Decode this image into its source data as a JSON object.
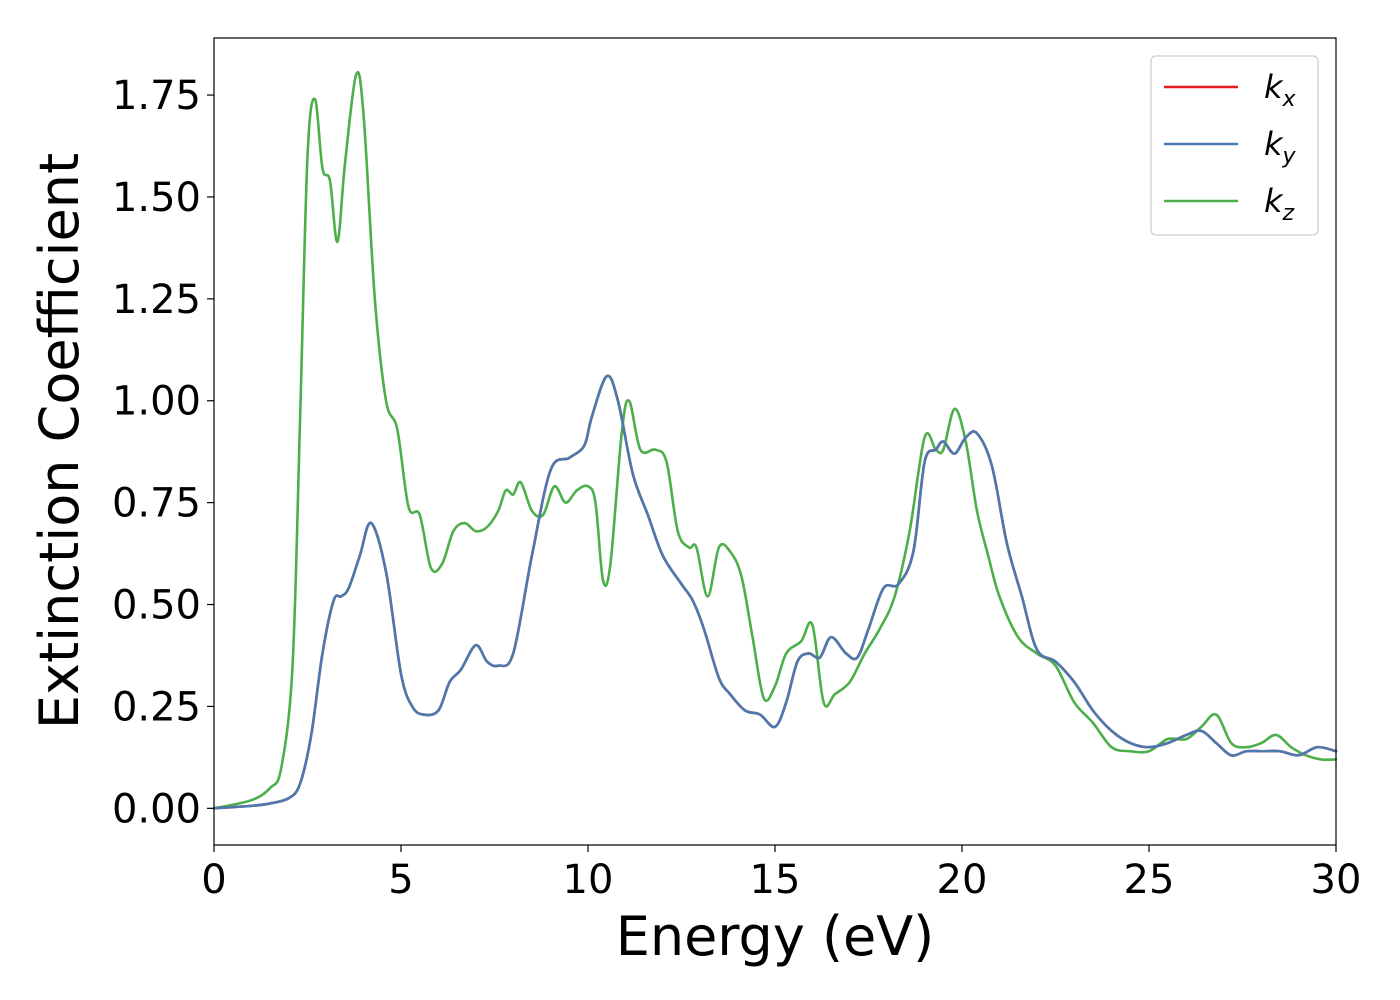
{
  "chart_data": {
    "type": "line",
    "xlabel": "Energy (eV)",
    "ylabel": "Extinction Coefficient",
    "xlim": [
      0,
      30
    ],
    "ylim": [
      -0.09,
      1.89
    ],
    "xticks": [
      0,
      5,
      10,
      15,
      20,
      25,
      30
    ],
    "xtick_labels": [
      "0",
      "5",
      "10",
      "15",
      "20",
      "25",
      "30"
    ],
    "yticks": [
      0,
      0.25,
      0.5,
      0.75,
      1.0,
      1.25,
      1.5,
      1.75
    ],
    "ytick_labels": [
      "0.00",
      "0.25",
      "0.50",
      "0.75",
      "1.00",
      "1.25",
      "1.50",
      "1.75"
    ],
    "grid": false,
    "legend_position": "top-right",
    "series": [
      {
        "name": "kx",
        "label_base": "k",
        "label_sub": "x",
        "color": "#e41a1c",
        "x": [
          0,
          1,
          1.5,
          2,
          2.3,
          2.6,
          2.9,
          3.2,
          3.4,
          3.6,
          3.9,
          4.2,
          4.6,
          5.0,
          5.3,
          5.6,
          6.0,
          6.3,
          6.6,
          7.0,
          7.3,
          7.6,
          8.0,
          8.5,
          9.0,
          9.5,
          9.9,
          10.1,
          10.5,
          10.8,
          11.2,
          11.6,
          12.0,
          12.5,
          12.8,
          13.1,
          13.5,
          13.8,
          14.2,
          14.6,
          15.0,
          15.3,
          15.6,
          15.9,
          16.2,
          16.5,
          16.9,
          17.2,
          17.5,
          17.9,
          18.3,
          18.7,
          19.0,
          19.3,
          19.5,
          19.8,
          20.1,
          20.4,
          20.8,
          21.2,
          21.6,
          22.0,
          22.5,
          23.0,
          23.5,
          24.0,
          24.5,
          25.0,
          25.5,
          26.0,
          26.4,
          26.8,
          27.2,
          27.6,
          28.0,
          28.5,
          29.0,
          29.5,
          30.0
        ],
        "values": [
          0.0,
          0.006,
          0.012,
          0.025,
          0.06,
          0.18,
          0.38,
          0.51,
          0.52,
          0.54,
          0.62,
          0.7,
          0.58,
          0.33,
          0.25,
          0.23,
          0.24,
          0.31,
          0.34,
          0.4,
          0.36,
          0.35,
          0.38,
          0.62,
          0.83,
          0.86,
          0.89,
          0.96,
          1.06,
          1.0,
          0.82,
          0.72,
          0.62,
          0.55,
          0.51,
          0.44,
          0.32,
          0.28,
          0.24,
          0.23,
          0.2,
          0.26,
          0.36,
          0.38,
          0.37,
          0.42,
          0.38,
          0.37,
          0.44,
          0.54,
          0.55,
          0.63,
          0.85,
          0.88,
          0.9,
          0.87,
          0.91,
          0.92,
          0.84,
          0.65,
          0.52,
          0.39,
          0.36,
          0.31,
          0.24,
          0.19,
          0.16,
          0.15,
          0.16,
          0.18,
          0.19,
          0.16,
          0.13,
          0.14,
          0.14,
          0.14,
          0.13,
          0.15,
          0.14
        ]
      },
      {
        "name": "ky",
        "label_base": "k",
        "label_sub": "y",
        "color": "#4a7ab0",
        "x": [
          0,
          1,
          1.5,
          2,
          2.3,
          2.6,
          2.9,
          3.2,
          3.4,
          3.6,
          3.9,
          4.2,
          4.6,
          5.0,
          5.3,
          5.6,
          6.0,
          6.3,
          6.6,
          7.0,
          7.3,
          7.6,
          8.0,
          8.5,
          9.0,
          9.5,
          9.9,
          10.1,
          10.5,
          10.8,
          11.2,
          11.6,
          12.0,
          12.5,
          12.8,
          13.1,
          13.5,
          13.8,
          14.2,
          14.6,
          15.0,
          15.3,
          15.6,
          15.9,
          16.2,
          16.5,
          16.9,
          17.2,
          17.5,
          17.9,
          18.3,
          18.7,
          19.0,
          19.3,
          19.5,
          19.8,
          20.1,
          20.4,
          20.8,
          21.2,
          21.6,
          22.0,
          22.5,
          23.0,
          23.5,
          24.0,
          24.5,
          25.0,
          25.5,
          26.0,
          26.4,
          26.8,
          27.2,
          27.6,
          28.0,
          28.5,
          29.0,
          29.5,
          30.0
        ],
        "values": [
          0.0,
          0.006,
          0.012,
          0.025,
          0.06,
          0.18,
          0.38,
          0.51,
          0.52,
          0.54,
          0.62,
          0.7,
          0.58,
          0.33,
          0.25,
          0.23,
          0.24,
          0.31,
          0.34,
          0.4,
          0.36,
          0.35,
          0.38,
          0.62,
          0.83,
          0.86,
          0.89,
          0.96,
          1.06,
          1.0,
          0.82,
          0.72,
          0.62,
          0.55,
          0.51,
          0.44,
          0.32,
          0.28,
          0.24,
          0.23,
          0.2,
          0.26,
          0.36,
          0.38,
          0.37,
          0.42,
          0.38,
          0.37,
          0.44,
          0.54,
          0.55,
          0.63,
          0.85,
          0.88,
          0.9,
          0.87,
          0.91,
          0.92,
          0.84,
          0.65,
          0.52,
          0.39,
          0.36,
          0.31,
          0.24,
          0.19,
          0.16,
          0.15,
          0.16,
          0.18,
          0.19,
          0.16,
          0.13,
          0.14,
          0.14,
          0.14,
          0.13,
          0.15,
          0.14
        ]
      },
      {
        "name": "kz",
        "label_base": "k",
        "label_sub": "z",
        "color": "#4daf4a",
        "x": [
          0,
          1,
          1.5,
          1.8,
          2.1,
          2.3,
          2.5,
          2.7,
          2.9,
          3.1,
          3.3,
          3.5,
          3.8,
          4.0,
          4.3,
          4.6,
          4.9,
          5.2,
          5.5,
          5.8,
          6.1,
          6.4,
          6.7,
          7.0,
          7.3,
          7.6,
          7.8,
          8.0,
          8.2,
          8.5,
          8.8,
          9.1,
          9.4,
          9.7,
          10.0,
          10.2,
          10.4,
          10.6,
          10.9,
          11.1,
          11.4,
          11.8,
          12.1,
          12.4,
          12.7,
          12.9,
          13.2,
          13.5,
          13.8,
          14.1,
          14.4,
          14.7,
          15.0,
          15.3,
          15.7,
          16.0,
          16.3,
          16.6,
          17.0,
          17.4,
          17.8,
          18.2,
          18.6,
          19.0,
          19.3,
          19.5,
          19.8,
          20.1,
          20.4,
          20.7,
          21.0,
          21.5,
          22.0,
          22.5,
          23.0,
          23.5,
          24.0,
          24.5,
          25.0,
          25.5,
          26.0,
          26.4,
          26.8,
          27.2,
          27.6,
          28.0,
          28.4,
          28.8,
          29.2,
          29.6,
          30.0
        ],
        "values": [
          0.0,
          0.02,
          0.05,
          0.1,
          0.35,
          0.95,
          1.6,
          1.74,
          1.57,
          1.54,
          1.39,
          1.58,
          1.8,
          1.7,
          1.25,
          1.0,
          0.93,
          0.74,
          0.72,
          0.59,
          0.6,
          0.68,
          0.7,
          0.68,
          0.69,
          0.73,
          0.78,
          0.77,
          0.8,
          0.73,
          0.72,
          0.79,
          0.75,
          0.78,
          0.79,
          0.75,
          0.56,
          0.6,
          0.92,
          1.0,
          0.88,
          0.88,
          0.85,
          0.68,
          0.64,
          0.64,
          0.52,
          0.64,
          0.63,
          0.57,
          0.42,
          0.27,
          0.3,
          0.38,
          0.41,
          0.45,
          0.26,
          0.28,
          0.31,
          0.38,
          0.44,
          0.52,
          0.68,
          0.91,
          0.88,
          0.88,
          0.98,
          0.9,
          0.73,
          0.62,
          0.52,
          0.42,
          0.38,
          0.35,
          0.26,
          0.21,
          0.15,
          0.14,
          0.14,
          0.17,
          0.17,
          0.2,
          0.23,
          0.16,
          0.15,
          0.16,
          0.18,
          0.15,
          0.13,
          0.12,
          0.12
        ]
      }
    ]
  }
}
